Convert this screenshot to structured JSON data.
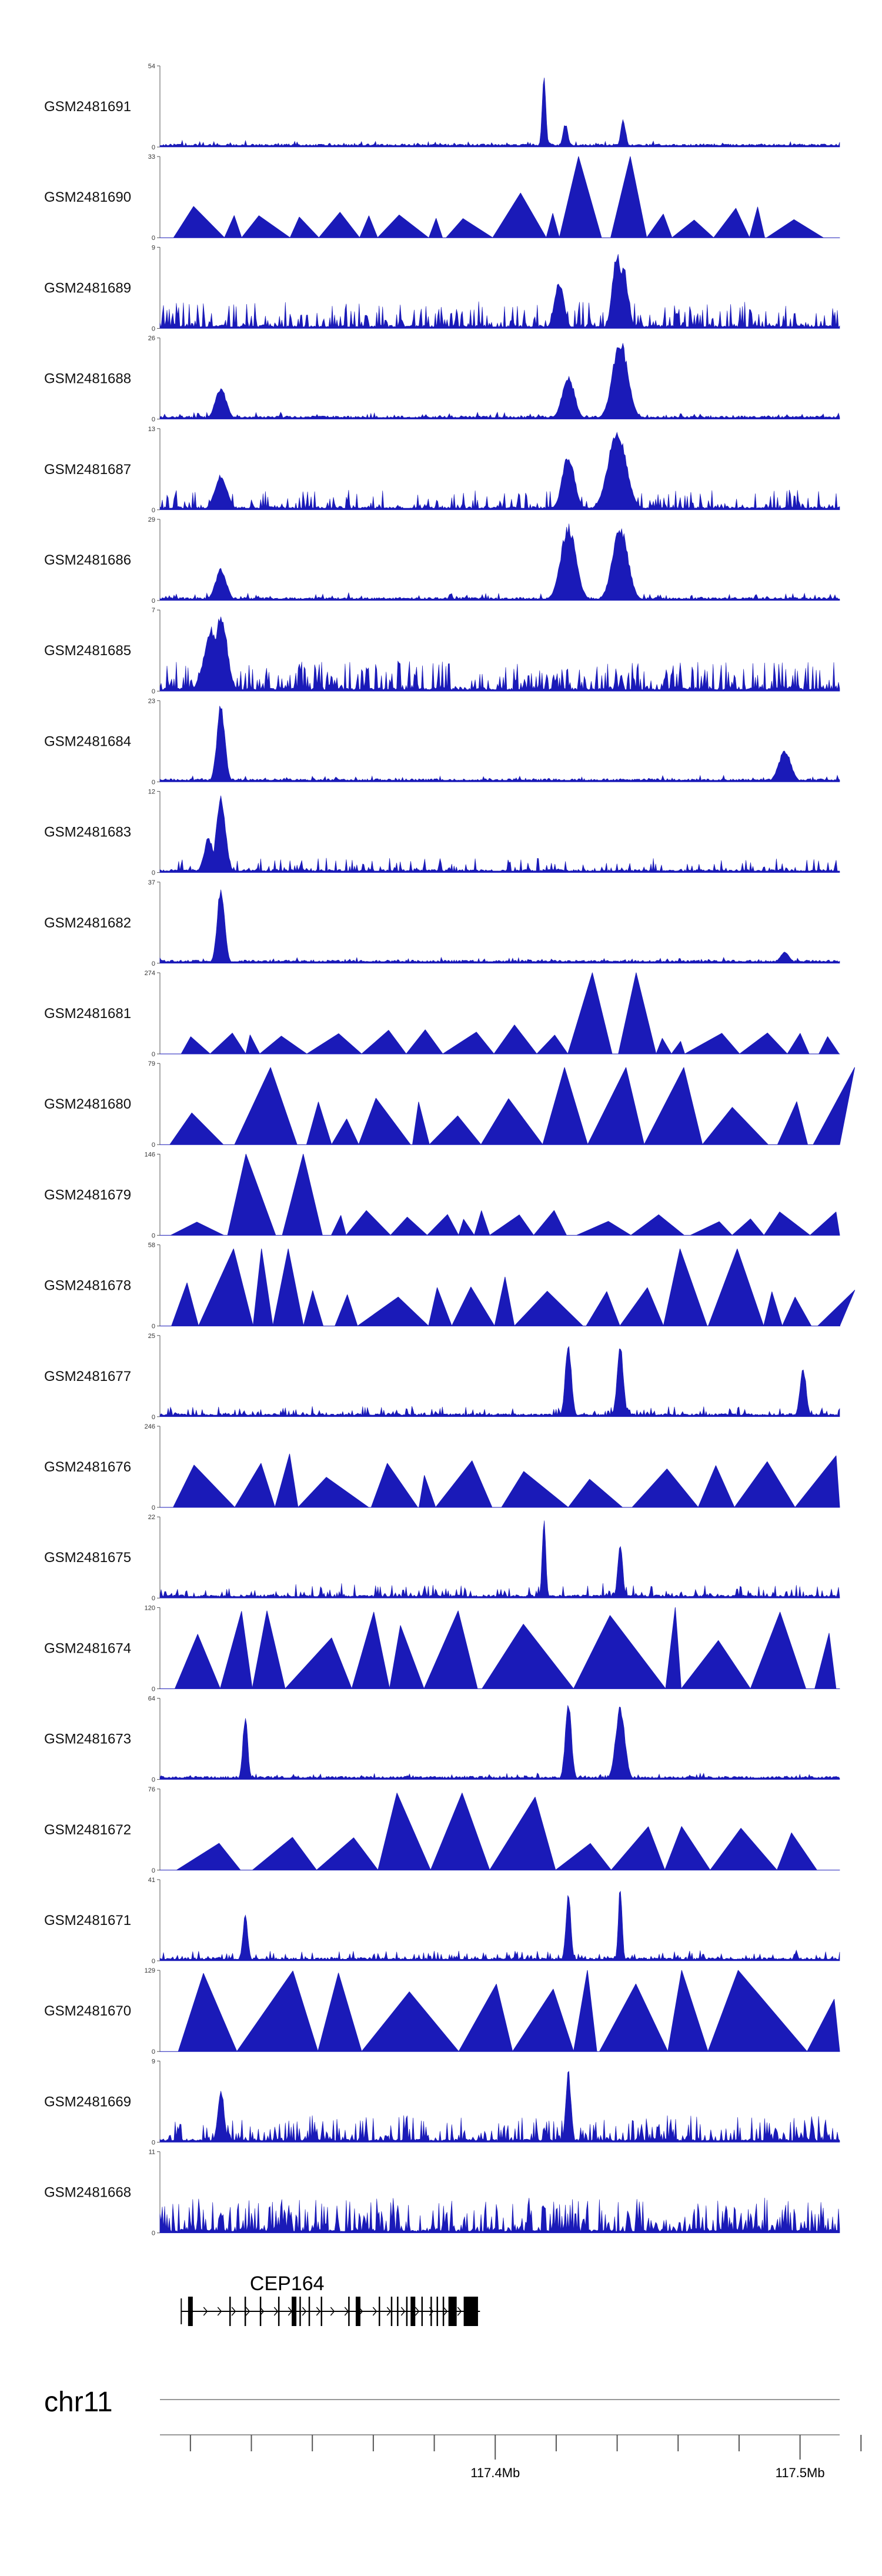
{
  "colors": {
    "signal": "#1a1ab8",
    "axis": "#555555",
    "gene": "#000000"
  },
  "chart_data": {
    "type": "area",
    "chromosome": "chr11",
    "x_ticks_labeled": [
      "117.4Mb",
      "117.5Mb"
    ],
    "x_tick_values_mb": [
      117.3,
      117.32,
      117.34,
      117.36,
      117.38,
      117.4,
      117.42,
      117.44,
      117.46,
      117.48,
      117.5,
      117.52
    ],
    "x_tick_labeled_values_mb": [
      117.4,
      117.5
    ],
    "xlim_mb": [
      117.29,
      117.513
    ],
    "gene": {
      "name": "CEP164",
      "start_mb": 117.297,
      "end_mb": 117.395,
      "strand": "+",
      "exons_mb": [
        117.3,
        117.313,
        117.318,
        117.323,
        117.329,
        117.334,
        117.336,
        117.339,
        117.343,
        117.352,
        117.355,
        117.362,
        117.366,
        117.368,
        117.371,
        117.373,
        117.376,
        117.379,
        117.381,
        117.383,
        117.386,
        117.391,
        117.393
      ]
    },
    "tracks": [
      {
        "name": "GSM2481691",
        "ymax": 54,
        "style": "noise",
        "density": 0.15,
        "base": 0.05,
        "peaks": [
          {
            "x": 117.416,
            "h": 1.0,
            "w": 0.0006
          },
          {
            "x": 117.423,
            "h": 0.3,
            "w": 0.0008
          },
          {
            "x": 117.442,
            "h": 0.35,
            "w": 0.0008
          }
        ]
      },
      {
        "name": "GSM2481690",
        "ymax": 33,
        "style": "tri",
        "density": 0.45,
        "base": 0.25,
        "peaks": [
          {
            "x": 117.434,
            "h": 1.0,
            "w": 0.0006
          },
          {
            "x": 117.442,
            "h": 0.65,
            "w": 0.0006
          },
          {
            "x": 117.414,
            "h": 0.55,
            "w": 0.0006
          }
        ]
      },
      {
        "name": "GSM2481689",
        "ymax": 9,
        "style": "noise",
        "density": 0.55,
        "base": 0.3,
        "peaks": [
          {
            "x": 117.44,
            "h": 1.0,
            "w": 0.0015
          },
          {
            "x": 117.442,
            "h": 0.8,
            "w": 0.0015
          },
          {
            "x": 117.421,
            "h": 0.6,
            "w": 0.0015
          }
        ]
      },
      {
        "name": "GSM2481688",
        "ymax": 26,
        "style": "noise",
        "density": 0.2,
        "base": 0.06,
        "peaks": [
          {
            "x": 117.441,
            "h": 1.0,
            "w": 0.0025
          },
          {
            "x": 117.424,
            "h": 0.55,
            "w": 0.002
          },
          {
            "x": 117.31,
            "h": 0.4,
            "w": 0.0018
          }
        ]
      },
      {
        "name": "GSM2481687",
        "ymax": 13,
        "style": "noise",
        "density": 0.45,
        "base": 0.22,
        "peaks": [
          {
            "x": 117.44,
            "h": 1.0,
            "w": 0.003
          },
          {
            "x": 117.424,
            "h": 0.7,
            "w": 0.002
          },
          {
            "x": 117.31,
            "h": 0.45,
            "w": 0.002
          }
        ]
      },
      {
        "name": "GSM2481686",
        "ymax": 29,
        "style": "noise",
        "density": 0.2,
        "base": 0.06,
        "peaks": [
          {
            "x": 117.424,
            "h": 0.95,
            "w": 0.0025
          },
          {
            "x": 117.441,
            "h": 0.95,
            "w": 0.0025
          },
          {
            "x": 117.31,
            "h": 0.4,
            "w": 0.0018
          }
        ]
      },
      {
        "name": "GSM2481685",
        "ymax": 7,
        "style": "noise",
        "density": 0.7,
        "base": 0.35,
        "peaks": [
          {
            "x": 117.31,
            "h": 1.0,
            "w": 0.002
          },
          {
            "x": 117.307,
            "h": 0.8,
            "w": 0.0025
          }
        ]
      },
      {
        "name": "GSM2481684",
        "ymax": 23,
        "style": "noise",
        "density": 0.15,
        "base": 0.05,
        "peaks": [
          {
            "x": 117.31,
            "h": 1.0,
            "w": 0.0013
          },
          {
            "x": 117.495,
            "h": 0.4,
            "w": 0.002
          }
        ]
      },
      {
        "name": "GSM2481683",
        "ymax": 12,
        "style": "noise",
        "density": 0.35,
        "base": 0.15,
        "peaks": [
          {
            "x": 117.31,
            "h": 0.95,
            "w": 0.0015
          },
          {
            "x": 117.306,
            "h": 0.45,
            "w": 0.0015
          }
        ]
      },
      {
        "name": "GSM2481682",
        "ymax": 37,
        "style": "noise",
        "density": 0.12,
        "base": 0.04,
        "peaks": [
          {
            "x": 117.31,
            "h": 1.0,
            "w": 0.0012
          },
          {
            "x": 117.495,
            "h": 0.15,
            "w": 0.0015
          }
        ]
      },
      {
        "name": "GSM2481681",
        "ymax": 274,
        "style": "tri",
        "density": 0.0,
        "base": 0.2,
        "peaks": [
          {
            "x": 117.44,
            "h": 1.0,
            "w": 0.0008
          },
          {
            "x": 117.501,
            "h": 0.25,
            "w": 0.0006
          }
        ]
      },
      {
        "name": "GSM2481680",
        "ymax": 79,
        "style": "tri",
        "density": 0.0,
        "base": 0.5,
        "peaks": [
          {
            "x": 117.318,
            "h": 0.95,
            "w": 0.001
          },
          {
            "x": 117.43,
            "h": 0.95,
            "w": 0.0008
          },
          {
            "x": 117.448,
            "h": 0.95,
            "w": 0.0008
          },
          {
            "x": 117.513,
            "h": 0.95,
            "w": 0.0008
          }
        ]
      },
      {
        "name": "GSM2481679",
        "ymax": 146,
        "style": "tri",
        "density": 0.0,
        "base": 0.2,
        "peaks": [
          {
            "x": 117.326,
            "h": 1.0,
            "w": 0.001
          }
        ]
      },
      {
        "name": "GSM2481678",
        "ymax": 58,
        "style": "tri",
        "density": 0.0,
        "base": 0.5,
        "peaks": [
          {
            "x": 117.326,
            "h": 0.95,
            "w": 0.0006
          },
          {
            "x": 117.474,
            "h": 0.95,
            "w": 0.0006
          }
        ]
      },
      {
        "name": "GSM2481677",
        "ymax": 25,
        "style": "noise",
        "density": 0.3,
        "base": 0.1,
        "peaks": [
          {
            "x": 117.424,
            "h": 0.95,
            "w": 0.001
          },
          {
            "x": 117.441,
            "h": 0.95,
            "w": 0.001
          },
          {
            "x": 117.501,
            "h": 0.65,
            "w": 0.001
          }
        ]
      },
      {
        "name": "GSM2481676",
        "ymax": 246,
        "style": "tri",
        "density": 0.0,
        "base": 0.5,
        "peaks": []
      },
      {
        "name": "GSM2481675",
        "ymax": 22,
        "style": "noise",
        "density": 0.4,
        "base": 0.15,
        "peaks": [
          {
            "x": 117.416,
            "h": 1.0,
            "w": 0.0006
          },
          {
            "x": 117.441,
            "h": 0.7,
            "w": 0.0008
          }
        ]
      },
      {
        "name": "GSM2481674",
        "ymax": 120,
        "style": "tri",
        "density": 0.0,
        "base": 0.95,
        "peaks": []
      },
      {
        "name": "GSM2481673",
        "ymax": 64,
        "style": "noise",
        "density": 0.2,
        "base": 0.05,
        "peaks": [
          {
            "x": 117.424,
            "h": 1.0,
            "w": 0.001
          },
          {
            "x": 117.441,
            "h": 0.95,
            "w": 0.0015
          },
          {
            "x": 117.318,
            "h": 0.8,
            "w": 0.0008
          }
        ]
      },
      {
        "name": "GSM2481672",
        "ymax": 76,
        "style": "tri",
        "density": 0.0,
        "base": 0.4,
        "peaks": [
          {
            "x": 117.375,
            "h": 0.95,
            "w": 0.001
          },
          {
            "x": 117.394,
            "h": 0.9,
            "w": 0.001
          }
        ]
      },
      {
        "name": "GSM2481671",
        "ymax": 41,
        "style": "noise",
        "density": 0.3,
        "base": 0.1,
        "peaks": [
          {
            "x": 117.441,
            "h": 1.0,
            "w": 0.0006
          },
          {
            "x": 117.424,
            "h": 0.85,
            "w": 0.0008
          },
          {
            "x": 117.318,
            "h": 0.6,
            "w": 0.0008
          }
        ]
      },
      {
        "name": "GSM2481670",
        "ymax": 129,
        "style": "tri",
        "density": 0.0,
        "base": 1.0,
        "peaks": []
      },
      {
        "name": "GSM2481669",
        "ymax": 9,
        "style": "noise",
        "density": 0.6,
        "base": 0.3,
        "peaks": [
          {
            "x": 117.424,
            "h": 0.95,
            "w": 0.0008
          },
          {
            "x": 117.31,
            "h": 0.7,
            "w": 0.001
          }
        ]
      },
      {
        "name": "GSM2481668",
        "ymax": 11,
        "style": "noise",
        "density": 0.75,
        "base": 0.4,
        "peaks": []
      }
    ]
  }
}
